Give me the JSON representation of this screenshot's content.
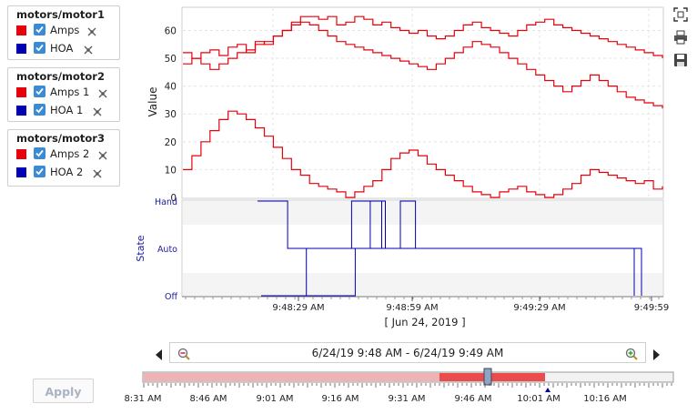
{
  "pen_groups": [
    {
      "title": "motors/motor1",
      "pens": [
        {
          "label": "Amps",
          "color": "#e8000b"
        },
        {
          "label": "HOA",
          "color": "#0000b3"
        }
      ]
    },
    {
      "title": "motors/motor2",
      "pens": [
        {
          "label": "Amps 1",
          "color": "#e8000b"
        },
        {
          "label": "HOA 1",
          "color": "#0000b3"
        }
      ]
    },
    {
      "title": "motors/motor3",
      "pens": [
        {
          "label": "Amps 2",
          "color": "#e8000b"
        },
        {
          "label": "HOA 2",
          "color": "#0000b3"
        }
      ]
    }
  ],
  "apply_label": "Apply",
  "toolbar": {
    "icons": [
      "fit-screen-icon",
      "print-icon",
      "save-icon"
    ]
  },
  "range": {
    "text": "6/24/19 9:48 AM - 6/24/19 9:49 AM",
    "zoom_out_icon": "zoom-out-icon",
    "zoom_in_icon": "zoom-in-icon"
  },
  "chart_data": [
    {
      "type": "line",
      "ylabel": "Value",
      "ylim": [
        0,
        68
      ],
      "yticks": [
        "0",
        "10",
        "20",
        "30",
        "40",
        "50",
        "60"
      ],
      "grid": true,
      "series": [
        {
          "color": "#e8000b",
          "values": [
            48,
            50,
            52,
            53,
            51,
            54,
            55,
            52,
            56,
            55,
            58,
            60,
            63,
            65,
            65,
            64,
            65,
            62,
            63,
            65,
            64,
            62,
            63,
            61,
            60,
            59,
            60,
            58,
            57,
            58,
            60,
            62,
            63,
            61,
            60,
            59,
            58,
            60,
            62,
            63,
            64,
            62,
            61,
            60,
            59,
            58,
            57,
            56,
            55,
            54,
            53,
            52,
            51,
            50
          ]
        },
        {
          "color": "#e8000b",
          "values": [
            52,
            50,
            48,
            46,
            48,
            50,
            52,
            53,
            55,
            56,
            58,
            60,
            62,
            63,
            62,
            60,
            58,
            56,
            55,
            54,
            53,
            52,
            51,
            50,
            49,
            48,
            47,
            46,
            48,
            50,
            52,
            54,
            56,
            55,
            54,
            52,
            50,
            48,
            46,
            44,
            42,
            40,
            38,
            40,
            42,
            44,
            42,
            40,
            38,
            36,
            35,
            34,
            33,
            32
          ]
        },
        {
          "color": "#e8000b",
          "values": [
            10,
            15,
            20,
            24,
            28,
            31,
            30,
            28,
            25,
            22,
            18,
            14,
            10,
            8,
            5,
            4,
            3,
            2,
            0,
            2,
            4,
            6,
            10,
            14,
            16,
            17,
            15,
            12,
            10,
            8,
            6,
            4,
            2,
            1,
            0,
            2,
            3,
            4,
            2,
            1,
            0,
            1,
            3,
            5,
            8,
            10,
            9,
            8,
            7,
            6,
            5,
            6,
            3,
            4
          ]
        }
      ]
    },
    {
      "type": "line",
      "ylabel": "State",
      "yticks": [
        "Off",
        "Auto",
        "Hand"
      ],
      "x_tick_labels": [
        "9:48:29 AM",
        "9:48:59 AM",
        "9:49:29 AM",
        "9:49:59"
      ],
      "x_caption": "[ Jun 24, 2019 ]",
      "grid": true,
      "series": [
        {
          "color": "#0000b3",
          "values": [
            2,
            2,
            1,
            1,
            1,
            1,
            1,
            1,
            1,
            1,
            1,
            1,
            1,
            1,
            1,
            1,
            1,
            1,
            1,
            1,
            1,
            1,
            1,
            1,
            1,
            0
          ]
        },
        {
          "color": "#0000b3",
          "values": [
            0,
            0,
            0,
            1,
            1,
            1,
            2,
            2,
            1,
            1,
            1,
            1,
            1,
            1,
            1,
            1,
            1,
            1,
            1,
            1,
            1,
            1,
            1,
            1,
            1,
            1
          ]
        },
        {
          "color": "#0000b3",
          "values": [
            0,
            0,
            0,
            0,
            0,
            0,
            1,
            2,
            1,
            2,
            1,
            1,
            1,
            1,
            1,
            1,
            1,
            1,
            1,
            1,
            1,
            1,
            1,
            1,
            1,
            0
          ]
        }
      ]
    },
    {
      "type": "timeline",
      "tick_labels": [
        "8:31 AM",
        "8:46 AM",
        "9:01 AM",
        "9:16 AM",
        "9:31 AM",
        "9:46 AM",
        "10:01 AM",
        "10:16 AM"
      ]
    }
  ]
}
